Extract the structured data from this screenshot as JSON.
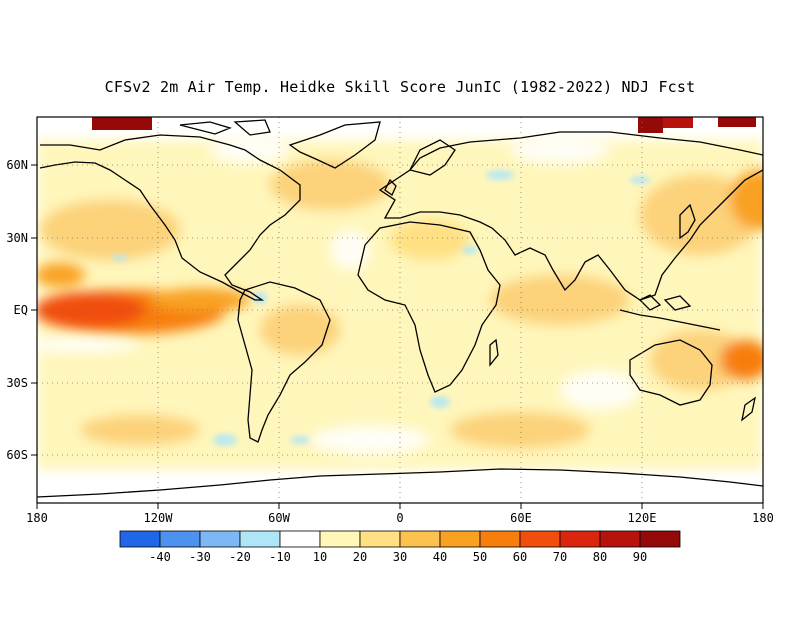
{
  "title": "CFSv2 2m Air Temp. Heidke Skill Score JunIC (1982-2022) NDJ Fcst",
  "map": {
    "projection": "equirectangular",
    "lon_range": [
      -180,
      180
    ],
    "lat_range": [
      -80,
      80
    ],
    "gridlines": "dotted",
    "lon_labels": [
      "180",
      "120W",
      "60W",
      "0",
      "60E",
      "120E",
      "180"
    ],
    "lat_labels": [
      "60N",
      "30N",
      "EQ",
      "30S",
      "60S"
    ]
  },
  "colorbar": {
    "colors": [
      "#2166e8",
      "#4e92ef",
      "#7db8f5",
      "#aee6f8",
      "#ffffff",
      "#fff6b8",
      "#ffe083",
      "#fcc24f",
      "#f9a122",
      "#f77e0c",
      "#f14d0c",
      "#d9260c",
      "#b8120c",
      "#950909"
    ],
    "tick_labels": [
      "-40",
      "-30",
      "-20",
      "-10",
      "10",
      "20",
      "30",
      "40",
      "50",
      "60",
      "70",
      "80",
      "90"
    ]
  }
}
